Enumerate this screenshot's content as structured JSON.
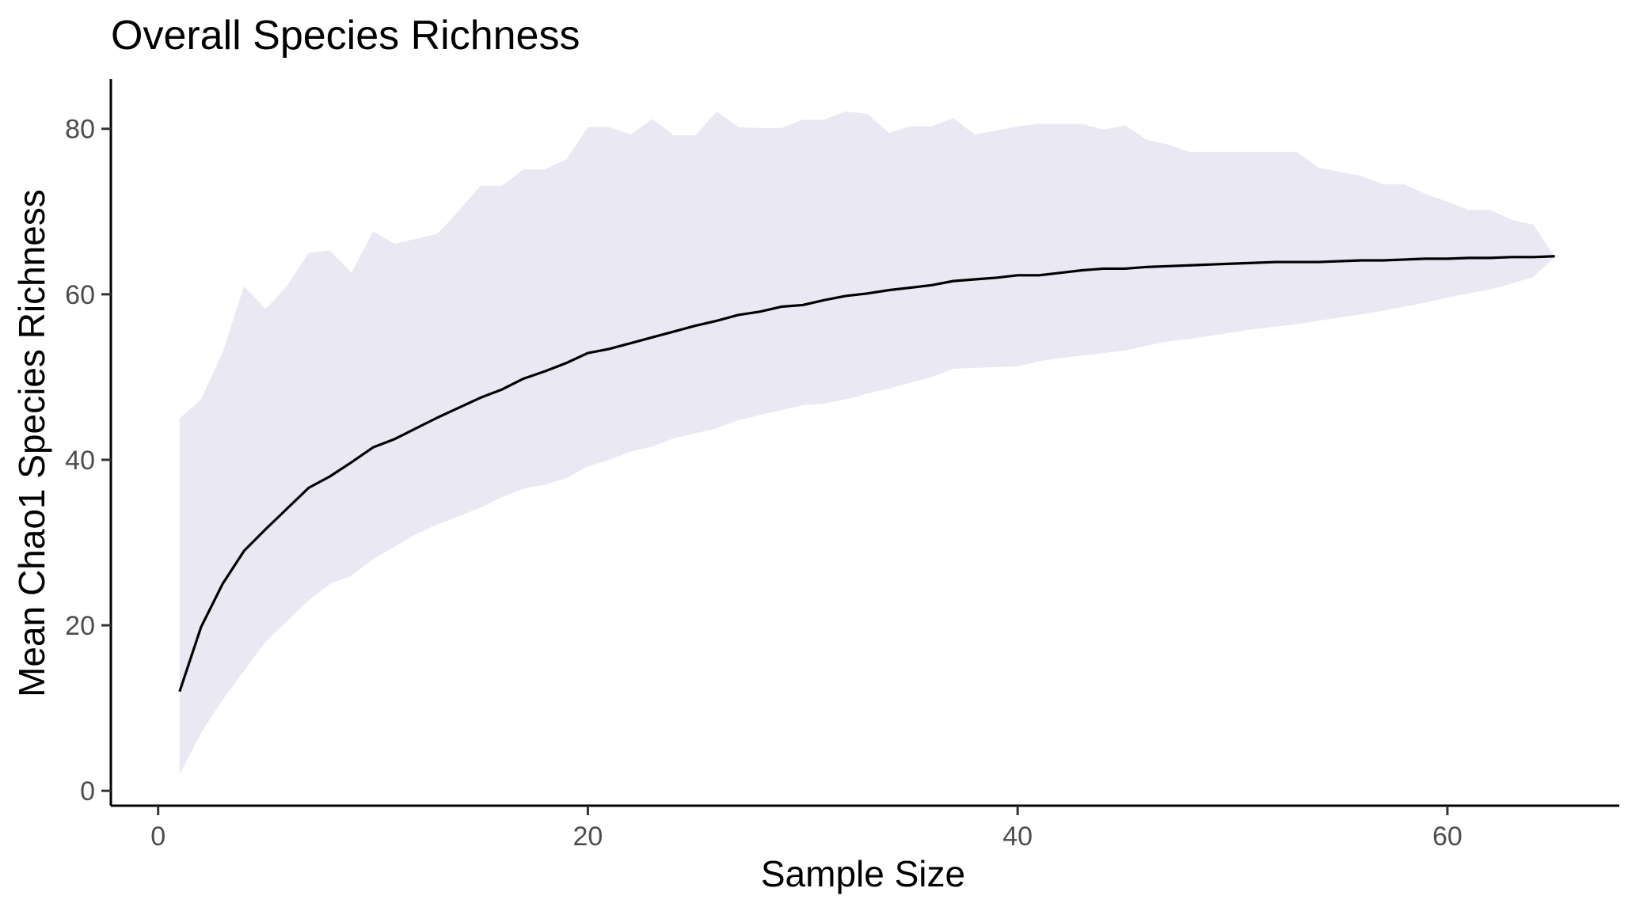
{
  "chart_data": {
    "type": "area",
    "title": "Overall Species Richness",
    "xlabel": "Sample Size",
    "ylabel": "Mean Chao1 Species Richness",
    "xlim": [
      -2.2,
      68
    ],
    "ylim": [
      -1.8,
      86
    ],
    "xticks": [
      0,
      20,
      40,
      60
    ],
    "yticks": [
      0,
      20,
      40,
      60,
      80
    ],
    "grid": false,
    "legend": "none",
    "colors": {
      "band": "#EAE8F3",
      "line": "#000000",
      "axis": "#000000",
      "tick_text": "#4D4D4D"
    },
    "series": [
      {
        "type": "ribbon",
        "x": [
          1,
          2,
          3,
          4,
          5,
          6,
          7,
          8,
          9,
          10,
          11,
          12,
          13,
          14,
          15,
          16,
          17,
          18,
          19,
          20,
          21,
          22,
          23,
          24,
          25,
          26,
          27,
          28,
          29,
          30,
          31,
          32,
          33,
          34,
          35,
          36,
          37,
          38,
          39,
          40,
          41,
          42,
          43,
          44,
          45,
          46,
          47,
          48,
          49,
          50,
          51,
          52,
          53,
          54,
          55,
          56,
          57,
          58,
          59,
          60,
          61,
          62,
          63,
          64,
          65
        ],
        "lower": [
          2,
          7,
          11,
          14.5,
          18,
          20.5,
          23,
          25,
          26,
          28,
          29.5,
          31,
          32.2,
          33.2,
          34.2,
          35.5,
          36.5,
          37,
          37.8,
          39.2,
          40,
          41,
          41.6,
          42.6,
          43.2,
          43.8,
          44.8,
          45.4,
          46,
          46.6,
          46.8,
          47.3,
          48,
          48.6,
          49.3,
          50,
          51,
          51.1,
          51.2,
          51.3,
          51.9,
          52.3,
          52.6,
          52.9,
          53.2,
          53.8,
          54.3,
          54.6,
          55,
          55.4,
          55.8,
          56.1,
          56.4,
          56.8,
          57.2,
          57.6,
          58,
          58.5,
          59,
          59.6,
          60.1,
          60.6,
          61.3,
          62.1,
          64.5
        ],
        "upper": [
          45,
          47.3,
          53,
          61,
          58.2,
          61,
          65,
          65.3,
          62.6,
          67.6,
          66.1,
          66.7,
          67.3,
          70.1,
          73.1,
          73.1,
          75.1,
          75.1,
          76.3,
          80.2,
          80.2,
          79.3,
          81.2,
          79.2,
          79.2,
          82.1,
          80.2,
          80.1,
          80.1,
          81.1,
          81.1,
          82.1,
          81.8,
          79.5,
          80.3,
          80.3,
          81.3,
          79.3,
          79.8,
          80.3,
          80.6,
          80.6,
          80.6,
          79.9,
          80.4,
          78.7,
          78.1,
          77.2,
          77.2,
          77.2,
          77.2,
          77.2,
          77.2,
          75.3,
          74.8,
          74.3,
          73.3,
          73.3,
          72.1,
          71.2,
          70.2,
          70.2,
          69,
          68.4,
          64.5
        ]
      },
      {
        "type": "line",
        "x": [
          1,
          2,
          3,
          4,
          5,
          6,
          7,
          8,
          9,
          10,
          11,
          12,
          13,
          14,
          15,
          16,
          17,
          18,
          19,
          20,
          21,
          22,
          23,
          24,
          25,
          26,
          27,
          28,
          29,
          30,
          31,
          32,
          33,
          34,
          35,
          36,
          37,
          38,
          39,
          40,
          41,
          42,
          43,
          44,
          45,
          46,
          47,
          48,
          49,
          50,
          51,
          52,
          53,
          54,
          55,
          56,
          57,
          58,
          59,
          60,
          61,
          62,
          63,
          64,
          65
        ],
        "y": [
          12,
          19.8,
          25,
          29,
          31.6,
          34.1,
          36.6,
          38,
          39.7,
          41.5,
          42.5,
          43.8,
          45.1,
          46.3,
          47.5,
          48.5,
          49.8,
          50.7,
          51.7,
          52.9,
          53.4,
          54.1,
          54.8,
          55.5,
          56.2,
          56.8,
          57.5,
          57.9,
          58.5,
          58.7,
          59.3,
          59.8,
          60.1,
          60.5,
          60.8,
          61.1,
          61.6,
          61.8,
          62,
          62.3,
          62.3,
          62.6,
          62.9,
          63.1,
          63.1,
          63.3,
          63.4,
          63.5,
          63.6,
          63.7,
          63.8,
          63.9,
          63.9,
          63.9,
          64,
          64.1,
          64.1,
          64.2,
          64.3,
          64.3,
          64.4,
          64.4,
          64.5,
          64.5,
          64.6
        ]
      }
    ]
  }
}
